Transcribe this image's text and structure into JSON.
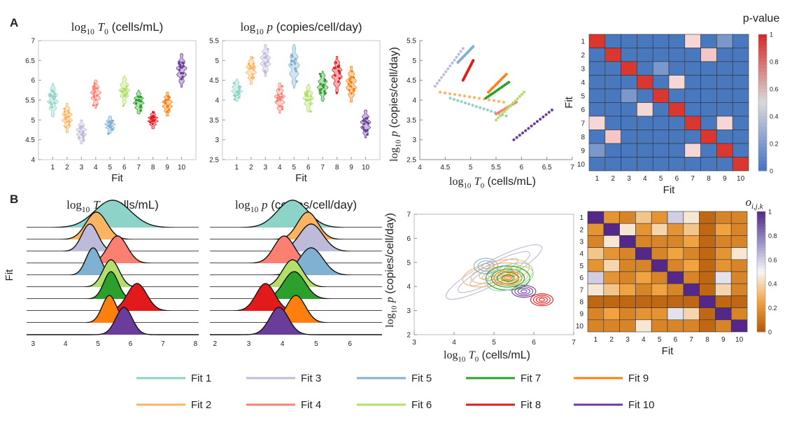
{
  "panel_labels": [
    "A",
    "B"
  ],
  "fit_colors": [
    "#8dd3c7",
    "#fdb462",
    "#bebada",
    "#fb8072",
    "#80b1d3",
    "#b3de69",
    "#2ca02c",
    "#e31a1c",
    "#ff7f0e",
    "#6a3d9a"
  ],
  "legend": {
    "row1": [
      "Fit 1",
      "Fit 3",
      "Fit 5",
      "Fit 7",
      "Fit 9"
    ],
    "row2": [
      "Fit 2",
      "Fit 4",
      "Fit 6",
      "Fit 8",
      "Fit 10"
    ]
  },
  "chart_data": [
    {
      "id": "A1",
      "type": "violin",
      "title_math": "log",
      "title_sub": "10",
      "title_var": "T",
      "title_varsub": "0",
      "title_units": "(cells/mL)",
      "xlabel": "Fit",
      "ylim": [
        4,
        7
      ],
      "yticks": [
        "4",
        "4.5",
        "5",
        "5.5",
        "6",
        "6.5",
        "7"
      ],
      "xticks": [
        "1",
        "2",
        "3",
        "4",
        "5",
        "6",
        "7",
        "8",
        "9",
        "10"
      ],
      "medians": [
        5.5,
        5.05,
        4.7,
        5.65,
        4.88,
        5.75,
        5.45,
        5.0,
        5.4,
        6.25
      ],
      "spreads": [
        0.42,
        0.37,
        0.3,
        0.36,
        0.22,
        0.36,
        0.3,
        0.22,
        0.3,
        0.42
      ]
    },
    {
      "id": "A2",
      "type": "violin",
      "title_math": "log",
      "title_sub": "10",
      "title_var": "p",
      "title_units": "(copies/cell/day)",
      "xlabel": "Fit",
      "ylim": [
        2.5,
        5.5
      ],
      "yticks": [
        "2.5",
        "3",
        "3.5",
        "4",
        "4.5",
        "5",
        "5.5"
      ],
      "xticks": [
        "1",
        "2",
        "3",
        "4",
        "5",
        "6",
        "7",
        "8",
        "9",
        "10"
      ],
      "medians": [
        4.25,
        4.75,
        5.0,
        4.05,
        4.85,
        4.05,
        4.35,
        4.65,
        4.4,
        3.4
      ],
      "spreads": [
        0.28,
        0.35,
        0.4,
        0.38,
        0.55,
        0.35,
        0.38,
        0.45,
        0.45,
        0.35
      ]
    },
    {
      "id": "A3",
      "type": "scatter",
      "xlabel_math": "log",
      "xlabel_sub": "10",
      "xlabel_var": "T",
      "xlabel_varsub": "0",
      "xlabel_units": "(cells/mL)",
      "ylabel_math": "log",
      "ylabel_sub": "10",
      "ylabel_var": "p",
      "ylabel_units": "(copies/cell/day)",
      "xlim": [
        4,
        7
      ],
      "ylim": [
        2.5,
        5.5
      ],
      "xticks": [
        "4",
        "4.5",
        "5",
        "5.5",
        "6",
        "6.5",
        "7"
      ],
      "yticks": [
        "2.5",
        "3",
        "3.5",
        "4",
        "4.5",
        "5",
        "5.5"
      ],
      "lines": [
        {
          "fit": 1,
          "x0": 4.6,
          "y0": 4.05,
          "x1": 5.7,
          "y1": 3.6,
          "n": 16
        },
        {
          "fit": 2,
          "x0": 4.4,
          "y0": 4.2,
          "x1": 5.65,
          "y1": 3.95,
          "n": 14
        },
        {
          "fit": 3,
          "x0": 4.3,
          "y0": 4.35,
          "x1": 4.85,
          "y1": 5.3,
          "n": 14
        },
        {
          "fit": 4,
          "x0": 5.5,
          "y0": 3.65,
          "x1": 5.9,
          "y1": 3.95,
          "n": 12
        },
        {
          "fit": 5,
          "x0": 4.75,
          "y0": 4.95,
          "x1": 5.05,
          "y1": 5.35,
          "n": 14
        },
        {
          "fit": 6,
          "x0": 5.5,
          "y0": 3.5,
          "x1": 6.05,
          "y1": 4.2,
          "n": 14
        },
        {
          "fit": 7,
          "x0": 5.3,
          "y0": 4.05,
          "x1": 5.75,
          "y1": 4.45,
          "n": 14
        },
        {
          "fit": 8,
          "x0": 4.85,
          "y0": 4.5,
          "x1": 5.05,
          "y1": 5.0,
          "n": 14
        },
        {
          "fit": 9,
          "x0": 5.35,
          "y0": 4.2,
          "x1": 5.7,
          "y1": 4.65,
          "n": 12
        },
        {
          "fit": 10,
          "x0": 5.85,
          "y0": 3.0,
          "x1": 6.6,
          "y1": 3.75,
          "n": 14
        }
      ]
    },
    {
      "id": "A4",
      "type": "heatmap",
      "colorbar_title": "p-value",
      "xlabel": "Fit",
      "ylabel": "Fit",
      "labels": [
        "1",
        "2",
        "3",
        "4",
        "5",
        "6",
        "7",
        "8",
        "9",
        "10"
      ],
      "cbar_ticks": [
        "0",
        "0.2",
        "0.4",
        "0.6",
        "0.8",
        "1"
      ],
      "cells": [
        {
          "r": 1,
          "c": 1,
          "v": 1
        },
        {
          "r": 2,
          "c": 2,
          "v": 1
        },
        {
          "r": 3,
          "c": 3,
          "v": 1
        },
        {
          "r": 4,
          "c": 4,
          "v": 1
        },
        {
          "r": 5,
          "c": 5,
          "v": 1
        },
        {
          "r": 6,
          "c": 6,
          "v": 1
        },
        {
          "r": 7,
          "c": 7,
          "v": 1
        },
        {
          "r": 8,
          "c": 8,
          "v": 1
        },
        {
          "r": 9,
          "c": 9,
          "v": 1
        },
        {
          "r": 10,
          "c": 10,
          "v": 1
        },
        {
          "r": 1,
          "c": 7,
          "v": 0.35
        },
        {
          "r": 7,
          "c": 1,
          "v": 0.35
        },
        {
          "r": 2,
          "c": 8,
          "v": 0.4
        },
        {
          "r": 8,
          "c": 2,
          "v": 0.4
        },
        {
          "r": 4,
          "c": 6,
          "v": 0.35
        },
        {
          "r": 6,
          "c": 4,
          "v": 0.35
        },
        {
          "r": 7,
          "c": 9,
          "v": 0.28
        },
        {
          "r": 9,
          "c": 7,
          "v": 0.28
        },
        {
          "r": 3,
          "c": 5,
          "v": 0.07
        },
        {
          "r": 5,
          "c": 3,
          "v": 0.07
        },
        {
          "r": 1,
          "c": 9,
          "v": 0.05
        },
        {
          "r": 9,
          "c": 1,
          "v": 0.05
        }
      ]
    },
    {
      "id": "B1",
      "type": "ridgeline",
      "title_math": "log",
      "title_sub": "10",
      "title_var": "T",
      "title_varsub": "0",
      "title_units": "(cells/mL)",
      "ylabel": "Fit",
      "xlim": [
        2.8,
        8.1
      ],
      "xticks": [
        "3",
        "4",
        "5",
        "6",
        "7",
        "8"
      ],
      "rows": [
        {
          "fit": 1,
          "mu": 5.45,
          "sd": 0.55
        },
        {
          "fit": 2,
          "mu": 4.95,
          "sd": 0.32
        },
        {
          "fit": 3,
          "mu": 4.75,
          "sd": 0.25
        },
        {
          "fit": 4,
          "mu": 5.6,
          "sd": 0.3
        },
        {
          "fit": 5,
          "mu": 4.85,
          "sd": 0.22
        },
        {
          "fit": 6,
          "mu": 5.4,
          "sd": 0.25
        },
        {
          "fit": 7,
          "mu": 5.4,
          "sd": 0.22
        },
        {
          "fit": 8,
          "mu": 6.2,
          "sd": 0.3
        },
        {
          "fit": 9,
          "mu": 5.35,
          "sd": 0.22
        },
        {
          "fit": 10,
          "mu": 5.8,
          "sd": 0.25
        }
      ]
    },
    {
      "id": "B2",
      "type": "ridgeline",
      "title_math": "log",
      "title_sub": "10",
      "title_var": "p",
      "title_units": "(copies/cell/day)",
      "xlim": [
        1.85,
        6.95
      ],
      "xticks": [
        "2",
        "3",
        "4",
        "5",
        "6"
      ],
      "rows": [
        {
          "fit": 1,
          "mu": 4.3,
          "sd": 0.45
        },
        {
          "fit": 2,
          "mu": 4.75,
          "sd": 0.3
        },
        {
          "fit": 3,
          "mu": 4.85,
          "sd": 0.35
        },
        {
          "fit": 4,
          "mu": 4.05,
          "sd": 0.3
        },
        {
          "fit": 5,
          "mu": 4.85,
          "sd": 0.35
        },
        {
          "fit": 6,
          "mu": 4.3,
          "sd": 0.3
        },
        {
          "fit": 7,
          "mu": 4.35,
          "sd": 0.32
        },
        {
          "fit": 8,
          "mu": 3.5,
          "sd": 0.28
        },
        {
          "fit": 9,
          "mu": 4.4,
          "sd": 0.28
        },
        {
          "fit": 10,
          "mu": 3.9,
          "sd": 0.28
        }
      ]
    },
    {
      "id": "B3",
      "type": "contour",
      "xlabel_math": "log",
      "xlabel_sub": "10",
      "xlabel_var": "T",
      "xlabel_varsub": "0",
      "xlabel_units": "(cells/mL)",
      "ylabel_math": "log",
      "ylabel_sub": "10",
      "ylabel_var": "p",
      "ylabel_units": "(copies/cell/day)",
      "xlim": [
        3,
        7
      ],
      "ylim": [
        2,
        7
      ],
      "xticks": [
        "3",
        "4",
        "5",
        "6",
        "7"
      ],
      "yticks": [
        "2",
        "3",
        "4",
        "5",
        "6",
        "7"
      ],
      "ellipses": [
        {
          "fit": 3,
          "cx": 5.0,
          "cy": 4.6,
          "rx": 1.35,
          "ry": 0.48,
          "angle": 28,
          "n": 4
        },
        {
          "fit": 2,
          "cx": 5.05,
          "cy": 4.55,
          "rx": 0.85,
          "ry": 0.5,
          "angle": 12,
          "n": 4
        },
        {
          "fit": 5,
          "cx": 4.8,
          "cy": 4.85,
          "rx": 0.3,
          "ry": 0.32,
          "angle": 0,
          "n": 3
        },
        {
          "fit": 6,
          "cx": 5.45,
          "cy": 4.35,
          "rx": 0.55,
          "ry": 0.45,
          "angle": 15,
          "n": 4
        },
        {
          "fit": 7,
          "cx": 5.35,
          "cy": 4.35,
          "rx": 0.55,
          "ry": 0.5,
          "angle": 0,
          "n": 4
        },
        {
          "fit": 9,
          "cx": 5.35,
          "cy": 4.35,
          "rx": 0.35,
          "ry": 0.3,
          "angle": 0,
          "n": 4
        },
        {
          "fit": 10,
          "cx": 5.75,
          "cy": 3.8,
          "rx": 0.3,
          "ry": 0.25,
          "angle": 0,
          "n": 4
        },
        {
          "fit": 8,
          "cx": 6.2,
          "cy": 3.45,
          "rx": 0.28,
          "ry": 0.25,
          "angle": 0,
          "n": 4
        },
        {
          "fit": 1,
          "cx": 5.4,
          "cy": 4.4,
          "rx": 0.6,
          "ry": 0.5,
          "angle": 20,
          "n": 2
        }
      ]
    },
    {
      "id": "B4",
      "type": "heatmap",
      "colorbar_title_var": "o",
      "colorbar_title_sub": "i,j,k",
      "xlabel": "Fit",
      "labels": [
        "1",
        "2",
        "3",
        "4",
        "5",
        "6",
        "7",
        "8",
        "9",
        "10"
      ],
      "cbar_ticks": [
        "0",
        "0.2",
        "0.4",
        "0.6",
        "0.8",
        "1"
      ],
      "matrix": [
        [
          1.0,
          0.2,
          0.15,
          0.35,
          0.2,
          0.6,
          0.45,
          0.05,
          0.15,
          0.15
        ],
        [
          0.2,
          1.0,
          0.45,
          0.2,
          0.4,
          0.2,
          0.35,
          0.05,
          0.25,
          0.15
        ],
        [
          0.15,
          0.45,
          1.0,
          0.15,
          0.15,
          0.15,
          0.25,
          0.05,
          0.15,
          0.15
        ],
        [
          0.35,
          0.2,
          0.15,
          1.0,
          0.15,
          0.25,
          0.15,
          0.05,
          0.2,
          0.45
        ],
        [
          0.2,
          0.4,
          0.15,
          0.15,
          1.0,
          0.15,
          0.25,
          0.05,
          0.2,
          0.15
        ],
        [
          0.6,
          0.2,
          0.15,
          0.25,
          0.15,
          1.0,
          0.15,
          0.05,
          0.55,
          0.15
        ],
        [
          0.45,
          0.35,
          0.25,
          0.15,
          0.25,
          0.15,
          1.0,
          0.05,
          0.4,
          0.15
        ],
        [
          0.05,
          0.05,
          0.05,
          0.05,
          0.05,
          0.05,
          0.05,
          1.0,
          0.05,
          0.05
        ],
        [
          0.15,
          0.25,
          0.15,
          0.2,
          0.2,
          0.55,
          0.4,
          0.05,
          1.0,
          0.15
        ],
        [
          0.15,
          0.15,
          0.15,
          0.45,
          0.15,
          0.15,
          0.15,
          0.05,
          0.15,
          1.0
        ]
      ]
    }
  ]
}
